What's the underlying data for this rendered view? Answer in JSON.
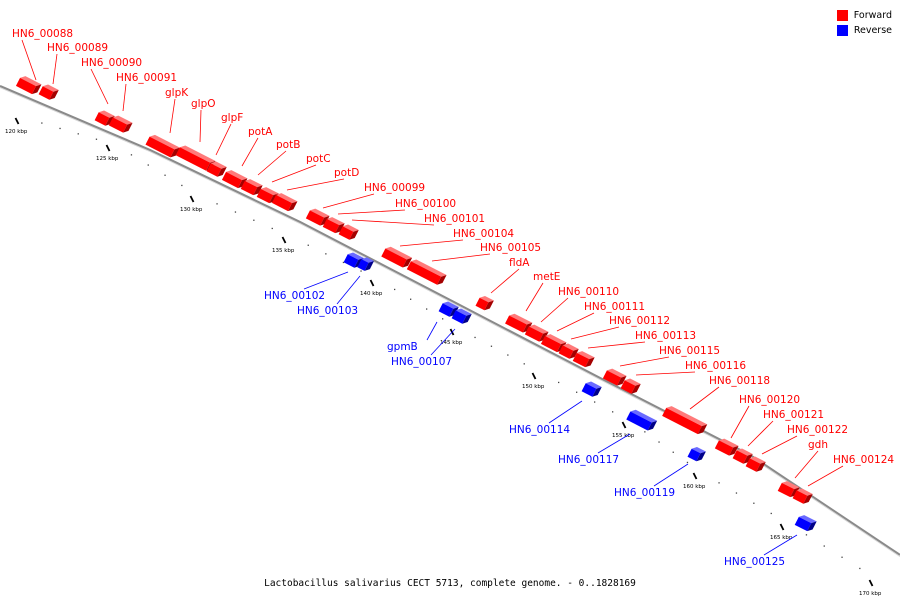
{
  "legend": {
    "forward": {
      "label": "Forward",
      "color": "#ff0000"
    },
    "reverse": {
      "label": "Reverse",
      "color": "#0000ff"
    }
  },
  "caption": "Lactobacillus salivarius CECT 5713, complete genome. - 0..1828169",
  "ticks": [
    "120 kbp",
    "125 kbp",
    "130 kbp",
    "135 kbp",
    "140 kbp",
    "145 kbp",
    "150 kbp",
    "155 kbp",
    "160 kbp",
    "165 kbp",
    "170 kbp"
  ],
  "genes": [
    {
      "label": "HN6_00088",
      "strand": "forward"
    },
    {
      "label": "HN6_00089",
      "strand": "forward"
    },
    {
      "label": "HN6_00090",
      "strand": "forward"
    },
    {
      "label": "HN6_00091",
      "strand": "forward"
    },
    {
      "label": "glpK",
      "strand": "forward"
    },
    {
      "label": "glpO",
      "strand": "forward"
    },
    {
      "label": "glpF",
      "strand": "forward"
    },
    {
      "label": "potA",
      "strand": "forward"
    },
    {
      "label": "potB",
      "strand": "forward"
    },
    {
      "label": "potC",
      "strand": "forward"
    },
    {
      "label": "potD",
      "strand": "forward"
    },
    {
      "label": "HN6_00099",
      "strand": "forward"
    },
    {
      "label": "HN6_00100",
      "strand": "forward"
    },
    {
      "label": "HN6_00101",
      "strand": "forward"
    },
    {
      "label": "HN6_00104",
      "strand": "forward"
    },
    {
      "label": "HN6_00105",
      "strand": "forward"
    },
    {
      "label": "fldA",
      "strand": "forward"
    },
    {
      "label": "metE",
      "strand": "forward"
    },
    {
      "label": "HN6_00110",
      "strand": "forward"
    },
    {
      "label": "HN6_00111",
      "strand": "forward"
    },
    {
      "label": "HN6_00112",
      "strand": "forward"
    },
    {
      "label": "HN6_00113",
      "strand": "forward"
    },
    {
      "label": "HN6_00115",
      "strand": "forward"
    },
    {
      "label": "HN6_00116",
      "strand": "forward"
    },
    {
      "label": "HN6_00118",
      "strand": "forward"
    },
    {
      "label": "HN6_00120",
      "strand": "forward"
    },
    {
      "label": "HN6_00121",
      "strand": "forward"
    },
    {
      "label": "HN6_00122",
      "strand": "forward"
    },
    {
      "label": "gdh",
      "strand": "forward"
    },
    {
      "label": "HN6_00124",
      "strand": "forward"
    },
    {
      "label": "HN6_00102",
      "strand": "reverse"
    },
    {
      "label": "HN6_00103",
      "strand": "reverse"
    },
    {
      "label": "gpmB",
      "strand": "reverse"
    },
    {
      "label": "HN6_00107",
      "strand": "reverse"
    },
    {
      "label": "HN6_00114",
      "strand": "reverse"
    },
    {
      "label": "HN6_00117",
      "strand": "reverse"
    },
    {
      "label": "HN6_00119",
      "strand": "reverse"
    },
    {
      "label": "HN6_00125",
      "strand": "reverse"
    }
  ]
}
